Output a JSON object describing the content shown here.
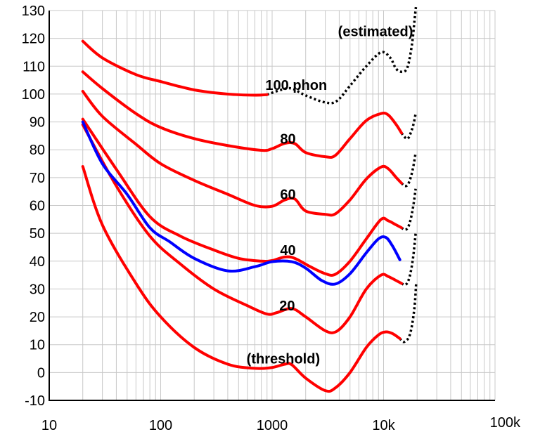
{
  "chart_data": {
    "type": "line",
    "title": "",
    "xlabel": "",
    "ylabel": "",
    "x_scale": "log",
    "xlim": [
      10,
      100000
    ],
    "ylim": [
      -10,
      130
    ],
    "grid": true,
    "x_ticks": [
      {
        "value": 10,
        "label": "10"
      },
      {
        "value": 100,
        "label": "100"
      },
      {
        "value": 1000,
        "label": "1000"
      },
      {
        "value": 10000,
        "label": "10k"
      },
      {
        "value": 100000,
        "label": "100k"
      }
    ],
    "y_ticks": [
      -10,
      0,
      10,
      20,
      30,
      40,
      50,
      60,
      70,
      80,
      90,
      100,
      110,
      120,
      130
    ],
    "colors": {
      "iso_curve": "#ff0000",
      "comparison_curve": "#0000ff",
      "estimated": "#000000",
      "grid": "#c8c8c8",
      "axis": "#000000"
    },
    "series": [
      {
        "label_key": "threshold",
        "color": "#ff0000",
        "style": "solid",
        "points": [
          [
            20,
            74
          ],
          [
            30,
            53
          ],
          [
            60,
            32
          ],
          [
            100,
            20
          ],
          [
            200,
            9
          ],
          [
            400,
            3
          ],
          [
            700,
            1.5
          ],
          [
            1000,
            1.8
          ],
          [
            1300,
            3
          ],
          [
            1500,
            2.8
          ],
          [
            2000,
            -2
          ],
          [
            3000,
            -6.5
          ],
          [
            3700,
            -5.5
          ],
          [
            5000,
            0
          ],
          [
            7000,
            9
          ],
          [
            9000,
            13.5
          ],
          [
            10500,
            14.6
          ],
          [
            12000,
            14
          ],
          [
            14000,
            12.2
          ]
        ]
      },
      {
        "label_key": "20",
        "color": "#ff0000",
        "style": "solid",
        "points": [
          [
            20,
            89
          ],
          [
            40,
            67
          ],
          [
            80,
            49
          ],
          [
            150,
            39
          ],
          [
            300,
            30
          ],
          [
            600,
            24
          ],
          [
            900,
            21
          ],
          [
            1100,
            21.5
          ],
          [
            1500,
            23
          ],
          [
            2000,
            20
          ],
          [
            3000,
            15
          ],
          [
            3800,
            14.8
          ],
          [
            5000,
            20
          ],
          [
            7000,
            30
          ],
          [
            9500,
            35
          ],
          [
            11000,
            34.5
          ],
          [
            13000,
            33
          ],
          [
            14500,
            32
          ]
        ]
      },
      {
        "label_key": "40",
        "color": "#ff0000",
        "style": "solid",
        "points": [
          [
            20,
            91
          ],
          [
            40,
            73
          ],
          [
            80,
            56
          ],
          [
            150,
            49
          ],
          [
            300,
            44
          ],
          [
            500,
            41
          ],
          [
            800,
            40
          ],
          [
            1000,
            40.2
          ],
          [
            1300,
            41.5
          ],
          [
            1600,
            41
          ],
          [
            2200,
            38
          ],
          [
            3000,
            35.5
          ],
          [
            3700,
            35.3
          ],
          [
            5000,
            40
          ],
          [
            7000,
            48
          ],
          [
            9500,
            55
          ],
          [
            11000,
            54.5
          ],
          [
            13000,
            53
          ],
          [
            14500,
            52
          ]
        ]
      },
      {
        "label_key": "60",
        "color": "#ff0000",
        "style": "solid",
        "points": [
          [
            20,
            101
          ],
          [
            30,
            92
          ],
          [
            60,
            82
          ],
          [
            100,
            75
          ],
          [
            200,
            69
          ],
          [
            400,
            64
          ],
          [
            700,
            60
          ],
          [
            1000,
            59.7
          ],
          [
            1300,
            62
          ],
          [
            1600,
            62.3
          ],
          [
            2000,
            58
          ],
          [
            3000,
            56.8
          ],
          [
            3700,
            57
          ],
          [
            5000,
            62
          ],
          [
            7000,
            69.5
          ],
          [
            9500,
            73.8
          ],
          [
            11000,
            73.2
          ],
          [
            13000,
            70
          ],
          [
            14500,
            68
          ]
        ]
      },
      {
        "label_key": "80",
        "color": "#ff0000",
        "style": "solid",
        "points": [
          [
            20,
            108
          ],
          [
            30,
            102
          ],
          [
            60,
            93
          ],
          [
            100,
            88
          ],
          [
            200,
            84
          ],
          [
            400,
            81.5
          ],
          [
            800,
            79.8
          ],
          [
            1000,
            80.4
          ],
          [
            1300,
            82.3
          ],
          [
            1600,
            82.2
          ],
          [
            2000,
            79
          ],
          [
            3000,
            77.5
          ],
          [
            3700,
            78
          ],
          [
            5000,
            84
          ],
          [
            7000,
            90.5
          ],
          [
            9500,
            93
          ],
          [
            11000,
            92.5
          ],
          [
            13000,
            89
          ],
          [
            14500,
            86
          ]
        ]
      },
      {
        "label_key": "100_phon",
        "color": "#ff0000",
        "style": "solid",
        "points": [
          [
            20,
            119
          ],
          [
            30,
            113
          ],
          [
            60,
            107
          ],
          [
            100,
            104.5
          ],
          [
            200,
            101.5
          ],
          [
            400,
            100
          ],
          [
            700,
            99.6
          ],
          [
            900,
            99.8
          ]
        ]
      },
      {
        "label_key": "100_phon",
        "color": "#000000",
        "style": "dotted",
        "points": [
          [
            900,
            99.8
          ],
          [
            1200,
            101.5
          ],
          [
            1500,
            102
          ],
          [
            2000,
            99.5
          ],
          [
            3000,
            97
          ],
          [
            3800,
            97.5
          ],
          [
            5000,
            103
          ],
          [
            7000,
            110
          ],
          [
            9500,
            115
          ],
          [
            11500,
            113
          ],
          [
            13000,
            109
          ],
          [
            15000,
            108
          ],
          [
            16500,
            110
          ],
          [
            18000,
            118
          ],
          [
            19000,
            127
          ],
          [
            19600,
            132
          ]
        ]
      },
      {
        "label_key": "",
        "color": "#000000",
        "style": "dotted",
        "points": [
          [
            14500,
            86
          ],
          [
            15500,
            84.5
          ],
          [
            16500,
            84
          ],
          [
            17500,
            86
          ],
          [
            18500,
            89
          ],
          [
            19400,
            93
          ]
        ]
      },
      {
        "label_key": "",
        "color": "#000000",
        "style": "dotted",
        "points": [
          [
            14500,
            68
          ],
          [
            15500,
            67
          ],
          [
            16500,
            67.5
          ],
          [
            17500,
            70
          ],
          [
            18500,
            74
          ],
          [
            19400,
            79
          ]
        ]
      },
      {
        "label_key": "",
        "color": "#000000",
        "style": "dotted",
        "points": [
          [
            14500,
            52
          ],
          [
            15500,
            51.3
          ],
          [
            16500,
            52
          ],
          [
            17500,
            55
          ],
          [
            18500,
            60
          ],
          [
            19400,
            66
          ]
        ]
      },
      {
        "label_key": "",
        "color": "#000000",
        "style": "dotted",
        "points": [
          [
            14500,
            32
          ],
          [
            15500,
            31.5
          ],
          [
            16500,
            32.5
          ],
          [
            17500,
            36
          ],
          [
            18500,
            42
          ],
          [
            19400,
            50
          ]
        ]
      },
      {
        "label_key": "",
        "color": "#000000",
        "style": "dotted",
        "points": [
          [
            14000,
            12.2
          ],
          [
            15000,
            11
          ],
          [
            16000,
            11.5
          ],
          [
            17000,
            13
          ],
          [
            18000,
            17
          ],
          [
            19000,
            24
          ],
          [
            19600,
            32
          ]
        ]
      },
      {
        "label_key": "",
        "color": "#0000ff",
        "style": "solid",
        "points": [
          [
            20,
            90
          ],
          [
            30,
            75
          ],
          [
            50,
            64
          ],
          [
            80,
            52
          ],
          [
            120,
            47
          ],
          [
            200,
            41
          ],
          [
            400,
            36.5
          ],
          [
            700,
            38
          ],
          [
            1000,
            39.8
          ],
          [
            1500,
            39.8
          ],
          [
            2000,
            37.5
          ],
          [
            2800,
            33
          ],
          [
            3700,
            31.8
          ],
          [
            5000,
            35.5
          ],
          [
            7000,
            43
          ],
          [
            9000,
            48
          ],
          [
            10500,
            48.5
          ],
          [
            12000,
            45.5
          ],
          [
            14000,
            40.5
          ]
        ]
      }
    ],
    "annotations": [
      {
        "key": "estimated",
        "text": "(estimated)",
        "x": 3900,
        "y": 122.5
      },
      {
        "key": "100_phon",
        "text": "100 phon",
        "x": 870,
        "y": 103.2
      },
      {
        "key": "80",
        "text": "80",
        "x": 1180,
        "y": 84
      },
      {
        "key": "60",
        "text": "60",
        "x": 1180,
        "y": 64
      },
      {
        "key": "40",
        "text": "40",
        "x": 1180,
        "y": 44
      },
      {
        "key": "20",
        "text": "20",
        "x": 1160,
        "y": 24
      },
      {
        "key": "threshold",
        "text": "(threshold)",
        "x": 590,
        "y": 5
      }
    ]
  }
}
